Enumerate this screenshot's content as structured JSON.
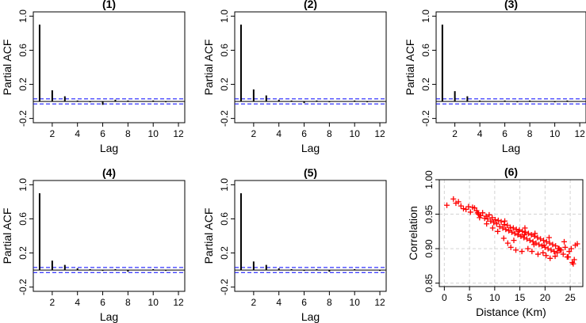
{
  "chart_data": [
    {
      "type": "bar",
      "title": "(1)",
      "xlabel": "Lag",
      "ylabel": "Partial ACF",
      "xlim": [
        0.5,
        12.5
      ],
      "ylim": [
        -0.25,
        1.05
      ],
      "xticks": [
        2,
        4,
        6,
        8,
        10,
        12
      ],
      "yticks": [
        -0.2,
        0.2,
        0.6,
        1.0
      ],
      "ytick_labels": [
        "-0.2",
        "0.2",
        "0.6",
        "1.0"
      ],
      "confidence_band": 0.03,
      "x": [
        1,
        2,
        3,
        4,
        5,
        6,
        7,
        8,
        9,
        10,
        11,
        12
      ],
      "values": [
        0.9,
        0.13,
        0.06,
        0.01,
        -0.01,
        -0.04,
        0.02,
        0.01,
        0.0,
        0.01,
        -0.01,
        0.0
      ]
    },
    {
      "type": "bar",
      "title": "(2)",
      "xlabel": "Lag",
      "ylabel": "Partial ACF",
      "xlim": [
        0.5,
        12.5
      ],
      "ylim": [
        -0.25,
        1.05
      ],
      "xticks": [
        2,
        4,
        6,
        8,
        10,
        12
      ],
      "yticks": [
        -0.2,
        0.2,
        0.6,
        1.0
      ],
      "ytick_labels": [
        "-0.2",
        "0.2",
        "0.6",
        "1.0"
      ],
      "confidence_band": 0.03,
      "x": [
        1,
        2,
        3,
        4,
        5,
        6,
        7,
        8,
        9,
        10,
        11,
        12
      ],
      "values": [
        0.9,
        0.14,
        0.07,
        0.02,
        0.01,
        -0.02,
        0.01,
        -0.01,
        0.0,
        0.01,
        -0.01,
        0.0
      ]
    },
    {
      "type": "bar",
      "title": "(3)",
      "xlabel": "Lag",
      "ylabel": "Partial ACF",
      "xlim": [
        0.5,
        12.5
      ],
      "ylim": [
        -0.25,
        1.05
      ],
      "xticks": [
        2,
        4,
        6,
        8,
        10,
        12
      ],
      "yticks": [
        -0.2,
        0.2,
        0.6,
        1.0
      ],
      "ytick_labels": [
        "-0.2",
        "0.2",
        "0.6",
        "1.0"
      ],
      "confidence_band": 0.03,
      "x": [
        1,
        2,
        3,
        4,
        5,
        6,
        7,
        8,
        9,
        10,
        11,
        12
      ],
      "values": [
        0.9,
        0.12,
        0.06,
        0.01,
        0.0,
        0.01,
        -0.01,
        0.01,
        0.0,
        -0.01,
        0.01,
        0.0
      ]
    },
    {
      "type": "bar",
      "title": "(4)",
      "xlabel": "Lag",
      "ylabel": "Partial ACF",
      "xlim": [
        0.5,
        12.5
      ],
      "ylim": [
        -0.25,
        1.05
      ],
      "xticks": [
        2,
        4,
        6,
        8,
        10,
        12
      ],
      "yticks": [
        -0.2,
        0.2,
        0.6,
        1.0
      ],
      "ytick_labels": [
        "-0.2",
        "0.2",
        "0.6",
        "1.0"
      ],
      "confidence_band": 0.03,
      "x": [
        1,
        2,
        3,
        4,
        5,
        6,
        7,
        8,
        9,
        10,
        11,
        12
      ],
      "values": [
        0.9,
        0.11,
        0.06,
        0.02,
        0.01,
        -0.01,
        0.01,
        -0.02,
        0.0,
        0.01,
        -0.01,
        0.0
      ]
    },
    {
      "type": "bar",
      "title": "(5)",
      "xlabel": "Lag",
      "ylabel": "Partial ACF",
      "xlim": [
        0.5,
        12.5
      ],
      "ylim": [
        -0.25,
        1.05
      ],
      "xticks": [
        2,
        4,
        6,
        8,
        10,
        12
      ],
      "yticks": [
        -0.2,
        0.2,
        0.6,
        1.0
      ],
      "ytick_labels": [
        "-0.2",
        "0.2",
        "0.6",
        "1.0"
      ],
      "confidence_band": 0.03,
      "x": [
        1,
        2,
        3,
        4,
        5,
        6,
        7,
        8,
        9,
        10,
        11,
        12
      ],
      "values": [
        0.9,
        0.1,
        0.06,
        0.02,
        0.01,
        -0.01,
        0.01,
        -0.02,
        0.0,
        0.01,
        0.0,
        -0.01
      ]
    },
    {
      "type": "scatter",
      "title": "(6)",
      "xlabel": "Distance (Km)",
      "ylabel": "Correlation",
      "xlim": [
        -1,
        27.5
      ],
      "ylim": [
        0.845,
        1.0
      ],
      "xticks": [
        0,
        5,
        10,
        15,
        20,
        25
      ],
      "yticks": [
        0.85,
        0.9,
        0.95,
        1.0
      ],
      "ytick_labels": [
        "0.85",
        "0.90",
        "0.95",
        "1.00"
      ],
      "grid": true,
      "marker": "+",
      "color": "#ff0000",
      "x": [
        0.5,
        1.8,
        2.3,
        2.8,
        3.3,
        3.8,
        4.3,
        4.8,
        5.2,
        5.6,
        6.0,
        6.4,
        6.8,
        7.2,
        7.6,
        8.0,
        8.3,
        8.6,
        8.9,
        9.2,
        9.5,
        9.8,
        10.1,
        10.4,
        10.7,
        11.0,
        11.3,
        11.6,
        11.9,
        12.2,
        12.5,
        12.8,
        13.1,
        13.4,
        13.7,
        14.0,
        14.3,
        14.6,
        14.9,
        15.2,
        15.5,
        15.8,
        16.1,
        16.4,
        16.7,
        17.0,
        17.3,
        17.6,
        17.9,
        18.2,
        18.5,
        18.8,
        19.1,
        19.4,
        19.7,
        20.0,
        20.3,
        20.6,
        20.9,
        21.2,
        21.5,
        21.8,
        22.1,
        22.4,
        22.8,
        23.2,
        23.6,
        24.0,
        24.4,
        24.8,
        25.2,
        25.6,
        26.0,
        26.4,
        11.8,
        12.6,
        13.2,
        14.2,
        15.4,
        16.6,
        17.4,
        18.6,
        19.6,
        20.2,
        21.0,
        22.0,
        23.0,
        24.6,
        25.4,
        9.6,
        10.6,
        8.4,
        7.0,
        13.8,
        16.0,
        18.0,
        20.8,
        23.8,
        12.0,
        14.8,
        17.8,
        19.8,
        22.6,
        25.8,
        15.9,
        6.6
      ],
      "y": [
        0.963,
        0.972,
        0.966,
        0.968,
        0.962,
        0.958,
        0.957,
        0.961,
        0.953,
        0.96,
        0.959,
        0.955,
        0.95,
        0.948,
        0.952,
        0.944,
        0.947,
        0.943,
        0.949,
        0.94,
        0.945,
        0.938,
        0.942,
        0.936,
        0.941,
        0.932,
        0.939,
        0.93,
        0.935,
        0.928,
        0.934,
        0.926,
        0.931,
        0.924,
        0.93,
        0.922,
        0.928,
        0.92,
        0.927,
        0.918,
        0.925,
        0.916,
        0.924,
        0.914,
        0.922,
        0.912,
        0.92,
        0.91,
        0.918,
        0.908,
        0.916,
        0.906,
        0.914,
        0.904,
        0.912,
        0.902,
        0.91,
        0.9,
        0.908,
        0.898,
        0.906,
        0.896,
        0.904,
        0.894,
        0.9,
        0.898,
        0.892,
        0.902,
        0.888,
        0.896,
        0.9,
        0.878,
        0.905,
        0.907,
        0.915,
        0.908,
        0.902,
        0.898,
        0.896,
        0.9,
        0.896,
        0.892,
        0.894,
        0.89,
        0.886,
        0.889,
        0.898,
        0.888,
        0.88,
        0.93,
        0.925,
        0.936,
        0.945,
        0.912,
        0.93,
        0.922,
        0.916,
        0.91,
        0.94,
        0.925,
        0.906,
        0.905,
        0.9,
        0.884,
        0.92,
        0.952
      ]
    }
  ]
}
